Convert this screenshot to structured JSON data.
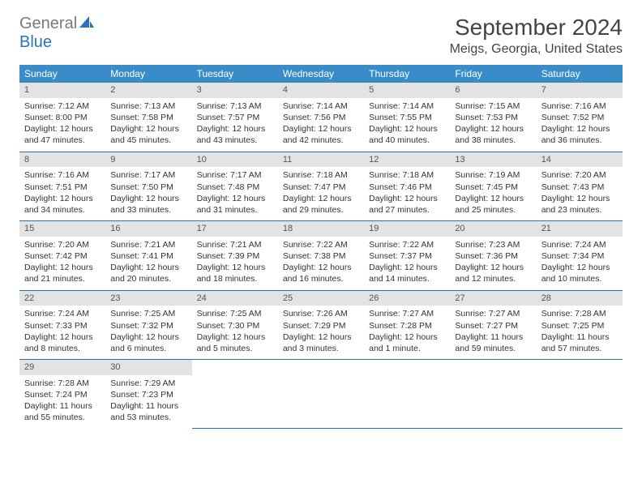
{
  "logo": {
    "text1": "General",
    "text2": "Blue"
  },
  "title": "September 2024",
  "location": "Meigs, Georgia, United States",
  "colors": {
    "header_bg": "#3a8cc9",
    "header_text": "#ffffff",
    "daynum_bg": "#e3e3e3",
    "row_border": "#2a6fa8",
    "logo_gray": "#7a7a7a",
    "logo_blue": "#2874b8"
  },
  "weekdays": [
    "Sunday",
    "Monday",
    "Tuesday",
    "Wednesday",
    "Thursday",
    "Friday",
    "Saturday"
  ],
  "days": [
    {
      "n": "1",
      "sunrise": "7:12 AM",
      "sunset": "8:00 PM",
      "daylight": "12 hours and 47 minutes."
    },
    {
      "n": "2",
      "sunrise": "7:13 AM",
      "sunset": "7:58 PM",
      "daylight": "12 hours and 45 minutes."
    },
    {
      "n": "3",
      "sunrise": "7:13 AM",
      "sunset": "7:57 PM",
      "daylight": "12 hours and 43 minutes."
    },
    {
      "n": "4",
      "sunrise": "7:14 AM",
      "sunset": "7:56 PM",
      "daylight": "12 hours and 42 minutes."
    },
    {
      "n": "5",
      "sunrise": "7:14 AM",
      "sunset": "7:55 PM",
      "daylight": "12 hours and 40 minutes."
    },
    {
      "n": "6",
      "sunrise": "7:15 AM",
      "sunset": "7:53 PM",
      "daylight": "12 hours and 38 minutes."
    },
    {
      "n": "7",
      "sunrise": "7:16 AM",
      "sunset": "7:52 PM",
      "daylight": "12 hours and 36 minutes."
    },
    {
      "n": "8",
      "sunrise": "7:16 AM",
      "sunset": "7:51 PM",
      "daylight": "12 hours and 34 minutes."
    },
    {
      "n": "9",
      "sunrise": "7:17 AM",
      "sunset": "7:50 PM",
      "daylight": "12 hours and 33 minutes."
    },
    {
      "n": "10",
      "sunrise": "7:17 AM",
      "sunset": "7:48 PM",
      "daylight": "12 hours and 31 minutes."
    },
    {
      "n": "11",
      "sunrise": "7:18 AM",
      "sunset": "7:47 PM",
      "daylight": "12 hours and 29 minutes."
    },
    {
      "n": "12",
      "sunrise": "7:18 AM",
      "sunset": "7:46 PM",
      "daylight": "12 hours and 27 minutes."
    },
    {
      "n": "13",
      "sunrise": "7:19 AM",
      "sunset": "7:45 PM",
      "daylight": "12 hours and 25 minutes."
    },
    {
      "n": "14",
      "sunrise": "7:20 AM",
      "sunset": "7:43 PM",
      "daylight": "12 hours and 23 minutes."
    },
    {
      "n": "15",
      "sunrise": "7:20 AM",
      "sunset": "7:42 PM",
      "daylight": "12 hours and 21 minutes."
    },
    {
      "n": "16",
      "sunrise": "7:21 AM",
      "sunset": "7:41 PM",
      "daylight": "12 hours and 20 minutes."
    },
    {
      "n": "17",
      "sunrise": "7:21 AM",
      "sunset": "7:39 PM",
      "daylight": "12 hours and 18 minutes."
    },
    {
      "n": "18",
      "sunrise": "7:22 AM",
      "sunset": "7:38 PM",
      "daylight": "12 hours and 16 minutes."
    },
    {
      "n": "19",
      "sunrise": "7:22 AM",
      "sunset": "7:37 PM",
      "daylight": "12 hours and 14 minutes."
    },
    {
      "n": "20",
      "sunrise": "7:23 AM",
      "sunset": "7:36 PM",
      "daylight": "12 hours and 12 minutes."
    },
    {
      "n": "21",
      "sunrise": "7:24 AM",
      "sunset": "7:34 PM",
      "daylight": "12 hours and 10 minutes."
    },
    {
      "n": "22",
      "sunrise": "7:24 AM",
      "sunset": "7:33 PM",
      "daylight": "12 hours and 8 minutes."
    },
    {
      "n": "23",
      "sunrise": "7:25 AM",
      "sunset": "7:32 PM",
      "daylight": "12 hours and 6 minutes."
    },
    {
      "n": "24",
      "sunrise": "7:25 AM",
      "sunset": "7:30 PM",
      "daylight": "12 hours and 5 minutes."
    },
    {
      "n": "25",
      "sunrise": "7:26 AM",
      "sunset": "7:29 PM",
      "daylight": "12 hours and 3 minutes."
    },
    {
      "n": "26",
      "sunrise": "7:27 AM",
      "sunset": "7:28 PM",
      "daylight": "12 hours and 1 minute."
    },
    {
      "n": "27",
      "sunrise": "7:27 AM",
      "sunset": "7:27 PM",
      "daylight": "11 hours and 59 minutes."
    },
    {
      "n": "28",
      "sunrise": "7:28 AM",
      "sunset": "7:25 PM",
      "daylight": "11 hours and 57 minutes."
    },
    {
      "n": "29",
      "sunrise": "7:28 AM",
      "sunset": "7:24 PM",
      "daylight": "11 hours and 55 minutes."
    },
    {
      "n": "30",
      "sunrise": "7:29 AM",
      "sunset": "7:23 PM",
      "daylight": "11 hours and 53 minutes."
    }
  ],
  "labels": {
    "sunrise": "Sunrise:",
    "sunset": "Sunset:",
    "daylight": "Daylight:"
  }
}
